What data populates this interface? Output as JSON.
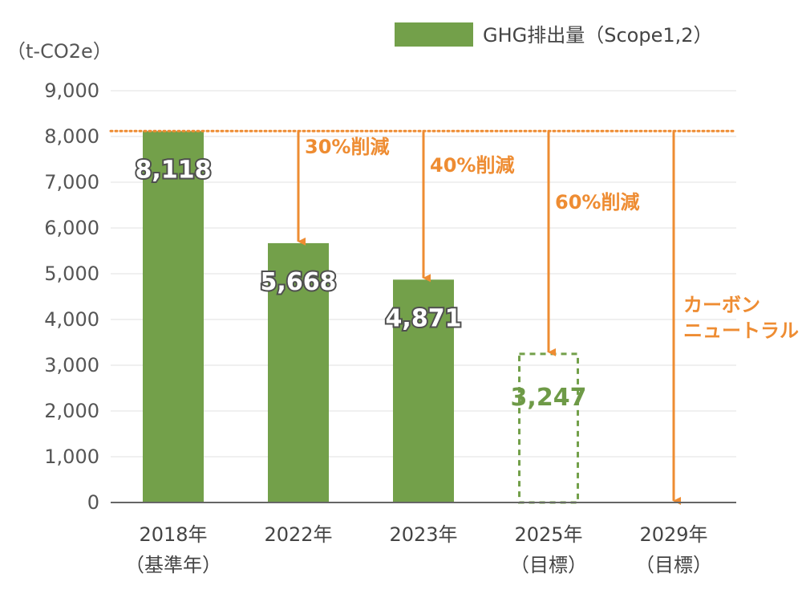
{
  "chart_data": {
    "type": "bar",
    "unit_label": "（t-CO2e）",
    "legend": {
      "label": "GHG排出量（Scope1,2）",
      "position": "top-right"
    },
    "y_ticks": [
      "9,000",
      "8,000",
      "7,000",
      "6,000",
      "5,000",
      "4,000",
      "3,000",
      "2,000",
      "1,000",
      "0"
    ],
    "ylim": [
      0,
      9000
    ],
    "grid": true,
    "baseline": {
      "value": 8118,
      "style": "dotted",
      "color": "#ee8c32"
    },
    "categories": [
      {
        "line1": "2018年",
        "line2": "（基準年）"
      },
      {
        "line1": "2022年",
        "line2": ""
      },
      {
        "line1": "2023年",
        "line2": ""
      },
      {
        "line1": "2025年",
        "line2": "（目標）"
      },
      {
        "line1": "2029年",
        "line2": "（目標）"
      }
    ],
    "bars": [
      {
        "value": 8118,
        "label": "8,118",
        "style": "solid"
      },
      {
        "value": 5668,
        "label": "5,668",
        "style": "solid"
      },
      {
        "value": 4871,
        "label": "4,871",
        "style": "solid"
      },
      {
        "value": 3247,
        "label": "3,247",
        "style": "dashed-target"
      },
      {
        "value": 0,
        "label": "",
        "style": "none"
      }
    ],
    "reductions": [
      {
        "category_index": 1,
        "label": "30%削減",
        "to_value": 5668
      },
      {
        "category_index": 2,
        "label": "40%削減",
        "to_value": 4871
      },
      {
        "category_index": 3,
        "label": "60%削減",
        "to_value": 3247
      },
      {
        "category_index": 4,
        "label": "カーボン",
        "label2": "ニュートラル",
        "to_value": 0
      }
    ],
    "colors": {
      "bar": "#73a04a",
      "accent": "#ee8c32",
      "grid": "#e2e2e2",
      "axis": "#666666"
    }
  }
}
